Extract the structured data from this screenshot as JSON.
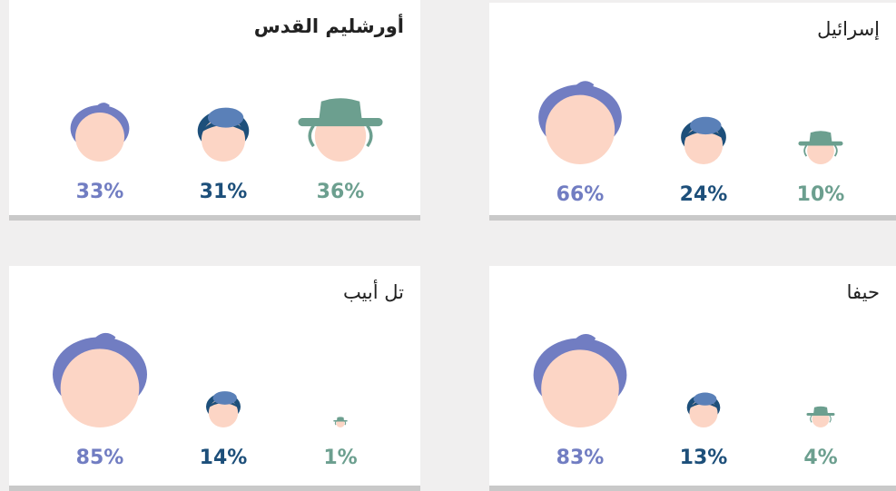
{
  "chart_data": [
    {
      "type": "icon-size",
      "title": "إسرائيل",
      "values": [
        66,
        24,
        10
      ],
      "value_labels": [
        "66%",
        "24%",
        "10%"
      ],
      "colors": [
        "#717dc2",
        "#1d4f7a",
        "#6c9f8f"
      ]
    },
    {
      "type": "icon-size",
      "title": "أورشليم القدس",
      "values": [
        33,
        31,
        36
      ],
      "value_labels": [
        "33%",
        "31%",
        "36%"
      ],
      "colors": [
        "#717dc2",
        "#1d4f7a",
        "#6c9f8f"
      ]
    },
    {
      "type": "icon-size",
      "title": "حيفا",
      "values": [
        83,
        13,
        4
      ],
      "value_labels": [
        "83%",
        "13%",
        "4%"
      ],
      "colors": [
        "#717dc2",
        "#1d4f7a",
        "#6c9f8f"
      ]
    },
    {
      "type": "icon-size",
      "title": "تل أبيب",
      "values": [
        85,
        14,
        1
      ],
      "value_labels": [
        "85%",
        "14%",
        "1%"
      ],
      "colors": [
        "#717dc2",
        "#1d4f7a",
        "#6c9f8f"
      ]
    }
  ]
}
